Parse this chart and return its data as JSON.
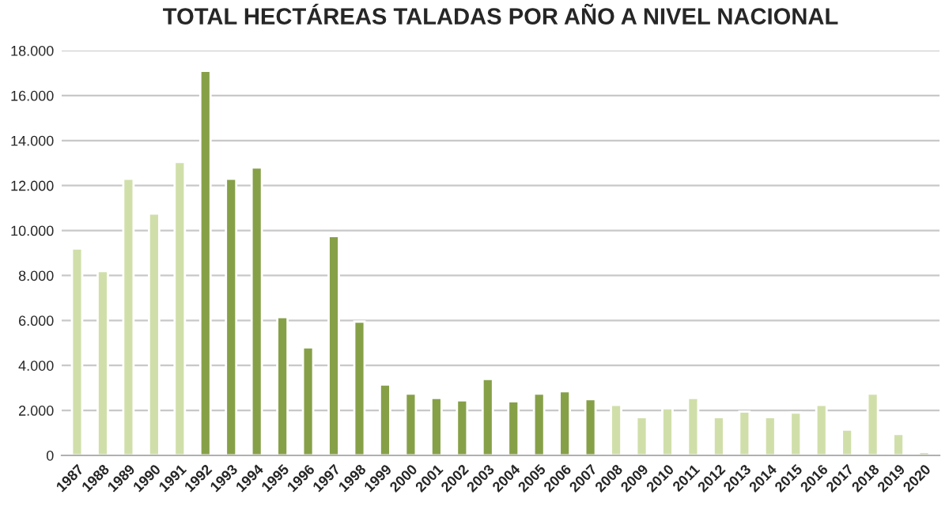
{
  "chart_data": {
    "type": "bar",
    "title": "TOTAL HECTÁREAS TALADAS POR AÑO A NIVEL NACIONAL",
    "categories": [
      "1987",
      "1988",
      "1989",
      "1990",
      "1991",
      "1992",
      "1993",
      "1994",
      "1995",
      "1996",
      "1997",
      "1998",
      "1999",
      "2000",
      "2001",
      "2002",
      "2003",
      "2004",
      "2005",
      "2006",
      "2007",
      "2008",
      "2009",
      "2010",
      "2011",
      "2012",
      "2013",
      "2014",
      "2015",
      "2016",
      "2017",
      "2018",
      "2019",
      "2020"
    ],
    "values": [
      9200,
      8200,
      12300,
      10750,
      13050,
      17100,
      12300,
      12800,
      6150,
      4800,
      9750,
      5950,
      3150,
      2750,
      2550,
      2450,
      3400,
      2400,
      2750,
      2850,
      2500,
      2250,
      1700,
      2100,
      2550,
      1700,
      1950,
      1700,
      1900,
      2250,
      1150,
      2750,
      950,
      150
    ],
    "colors": [
      "#d0dfa9",
      "#d0dfa9",
      "#d0dfa9",
      "#d0dfa9",
      "#d0dfa9",
      "#86a048",
      "#86a048",
      "#86a048",
      "#86a048",
      "#86a048",
      "#86a048",
      "#86a048",
      "#86a048",
      "#86a048",
      "#86a048",
      "#86a048",
      "#86a048",
      "#86a048",
      "#86a048",
      "#86a048",
      "#86a048",
      "#d0dfa9",
      "#d0dfa9",
      "#d0dfa9",
      "#d0dfa9",
      "#d0dfa9",
      "#d0dfa9",
      "#d0dfa9",
      "#d0dfa9",
      "#d0dfa9",
      "#d0dfa9",
      "#d0dfa9",
      "#d0dfa9",
      "#d0dfa9"
    ],
    "ylim": [
      0,
      18000
    ],
    "yticks": [
      0,
      {
        "value": 2000,
        "label": "2.000"
      },
      {
        "value": 4000,
        "label": "4.000"
      },
      {
        "value": 6000,
        "label": "6.000"
      },
      {
        "value": 8000,
        "label": "8.000"
      },
      {
        "value": 10000,
        "label": "10.000"
      },
      {
        "value": 12000,
        "label": "12.000"
      },
      {
        "value": 14000,
        "label": "14.000"
      },
      {
        "value": 16000,
        "label": "16.000"
      },
      {
        "value": 18000,
        "label": "18.000"
      }
    ],
    "grid": "y",
    "legend": false
  }
}
